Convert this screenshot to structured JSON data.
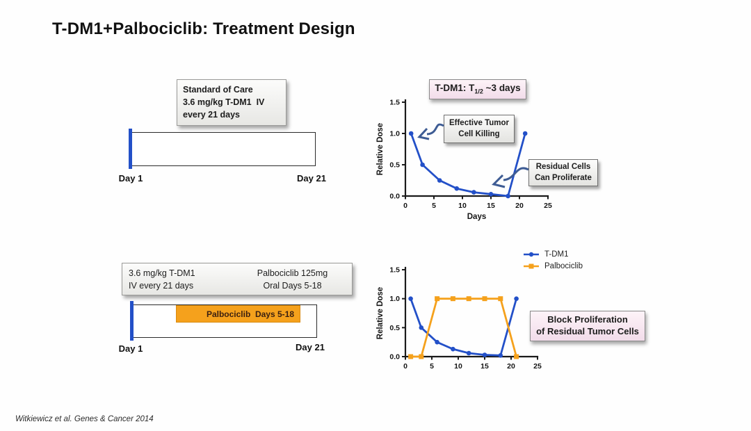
{
  "title": "T-DM1+Palbociclib: Treatment Design",
  "footer": "Witkiewicz et al. Genes & Cancer 2014",
  "colors": {
    "tdm1_blue": "#2350c8",
    "palbociclib_orange": "#f5a11c",
    "arrow_blue": "#3e5c94",
    "pink_box_bg": "#f7e3ee",
    "gray_box_bg": "#ebebe8"
  },
  "soc_diagram": {
    "info_box": [
      "Standard of Care",
      "3.6 mg/kg T-DM1  IV",
      "every 21 days"
    ],
    "day_start": "Day 1",
    "day_end": "Day 21"
  },
  "combo_diagram": {
    "info_left": [
      "3.6 mg/kg T-DM1",
      "IV every 21 days"
    ],
    "info_right": [
      "Palbociclib 125mg",
      "Oral Days 5-18"
    ],
    "bar_label": "Palbociclib  Days 5-18",
    "day_start": "Day 1",
    "day_end": "Day 21"
  },
  "chart_data": [
    {
      "type": "line",
      "title_box": {
        "prefix": "T-DM1: T",
        "sub": "1/2",
        "suffix": " ~3 days"
      },
      "x": [
        1,
        3,
        6,
        9,
        12,
        15,
        18,
        21
      ],
      "series": [
        {
          "name": "T-DM1",
          "color": "#2350c8",
          "marker": "circle",
          "values": [
            1.0,
            0.5,
            0.25,
            0.12,
            0.06,
            0.03,
            0.0,
            1.0
          ]
        }
      ],
      "xlabel": "Days",
      "ylabel": "Relative Dose",
      "xlim": [
        0,
        25
      ],
      "ylim": [
        0,
        1.5
      ],
      "xticks": [
        0,
        5,
        10,
        15,
        20,
        25
      ],
      "yticks": [
        "0.0",
        "0.5",
        "1.0",
        "1.5"
      ],
      "grid": false,
      "annotations": [
        {
          "lines": [
            "Effective Tumor",
            "Cell Killing"
          ]
        },
        {
          "lines": [
            "Residual Cells",
            "Can Proliferate"
          ]
        }
      ]
    },
    {
      "type": "line",
      "x": [
        1,
        3,
        6,
        9,
        12,
        15,
        18,
        21
      ],
      "series": [
        {
          "name": "T-DM1",
          "color": "#2350c8",
          "marker": "circle",
          "values": [
            1.0,
            0.5,
            0.25,
            0.13,
            0.06,
            0.03,
            0.02,
            1.0
          ]
        },
        {
          "name": "Palbociclib",
          "color": "#f5a11c",
          "marker": "square",
          "values": [
            0,
            0,
            1.0,
            1.0,
            1.0,
            1.0,
            1.0,
            0
          ]
        }
      ],
      "xlabel": "",
      "ylabel": "Relative Dose",
      "xlim": [
        0,
        25
      ],
      "ylim": [
        0,
        1.5
      ],
      "xticks": [
        0,
        5,
        10,
        15,
        20,
        25
      ],
      "yticks": [
        "0.0",
        "0.5",
        "1.0",
        "1.5"
      ],
      "grid": false,
      "legend_position": "top-right",
      "note_box": {
        "lines": [
          "Block Proliferation",
          "of Residual Tumor Cells"
        ]
      }
    }
  ]
}
